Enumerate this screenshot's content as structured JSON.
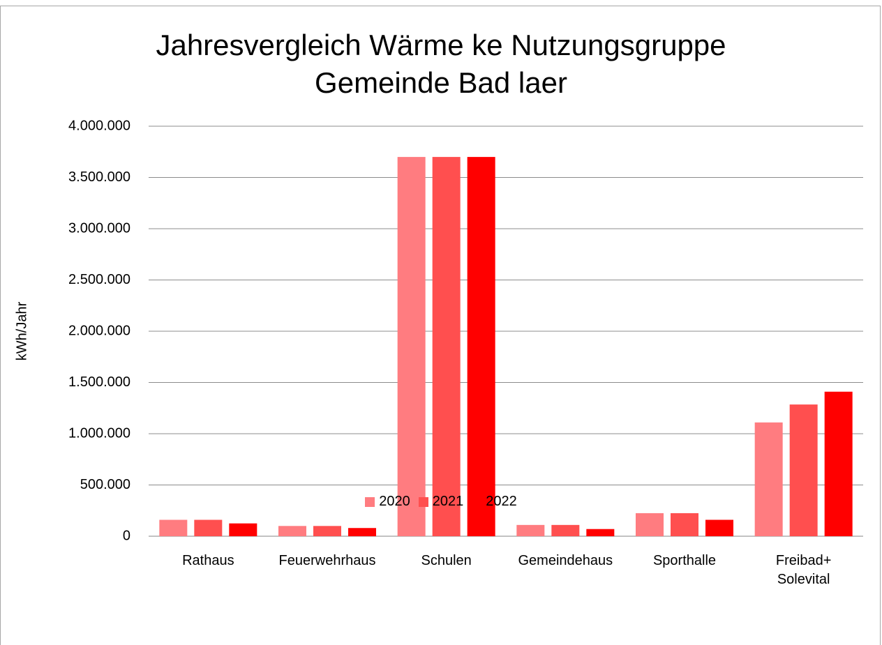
{
  "chart_data": {
    "type": "bar",
    "title": "Jahresvergleich Wärme ke Nutzungsgruppe\nGemeinde Bad laer",
    "y_label": "kWh/Jahr",
    "categories": [
      "Rathaus",
      "Feuerwehrhaus",
      "Schulen",
      "Gemeindehaus",
      "Sporthalle",
      "Freibad+\nSolevital"
    ],
    "series": [
      {
        "name": "2020",
        "color": "#ff7c80",
        "values": [
          160000,
          100000,
          3700000,
          110000,
          225000,
          1110000
        ]
      },
      {
        "name": "2021",
        "color": "#ff4f4f",
        "values": [
          160000,
          100000,
          3700000,
          110000,
          225000,
          1285000
        ]
      },
      {
        "name": "2022",
        "color": "#ff0000",
        "values": [
          125000,
          80000,
          3700000,
          70000,
          160000,
          1410000
        ]
      }
    ],
    "ylim": [
      0,
      4000000
    ],
    "yticks": [
      0,
      {
        "value": 500000,
        "label": "500.000"
      },
      {
        "value": 1000000,
        "label": "1.000.000"
      },
      {
        "value": 1500000,
        "label": "1.500.000"
      },
      {
        "value": 2000000,
        "label": "2.000.000"
      },
      {
        "value": 2500000,
        "label": "2.500.000"
      },
      {
        "value": 3000000,
        "label": "3.000.000"
      },
      {
        "value": 3500000,
        "label": "3.500.000"
      },
      {
        "value": 4000000,
        "label": "4.000.000"
      }
    ],
    "grid": true,
    "legend": "bottom"
  }
}
